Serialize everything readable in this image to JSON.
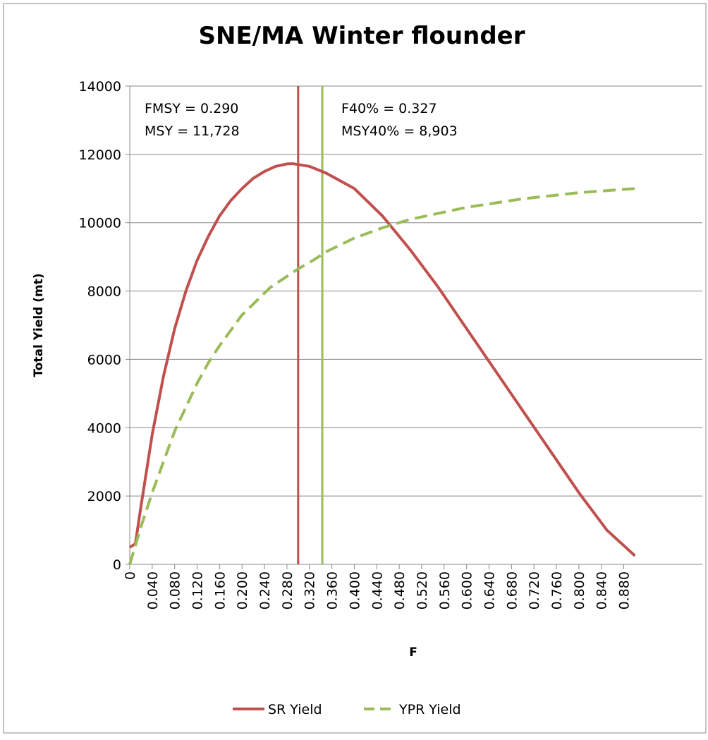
{
  "chart_data": {
    "type": "line",
    "title": "SNE/MA Winter flounder",
    "x_label": "F",
    "y_label": "Total Yield (mt)",
    "xlim": [
      0,
      1.02
    ],
    "ylim": [
      0,
      14000
    ],
    "xticks": [
      0,
      {
        "value": 0.04,
        "label": "0.040"
      },
      {
        "value": 0.08,
        "label": "0.080"
      },
      {
        "value": 0.12,
        "label": "0.120"
      },
      {
        "value": 0.16,
        "label": "0.160"
      },
      {
        "value": 0.2,
        "label": "0.200"
      },
      {
        "value": 0.24,
        "label": "0.240"
      },
      {
        "value": 0.28,
        "label": "0.280"
      },
      {
        "value": 0.32,
        "label": "0.320"
      },
      {
        "value": 0.36,
        "label": "0.360"
      },
      {
        "value": 0.4,
        "label": "0.400"
      },
      {
        "value": 0.44,
        "label": "0.440"
      },
      {
        "value": 0.48,
        "label": "0.480"
      },
      {
        "value": 0.52,
        "label": "0.520"
      },
      {
        "value": 0.56,
        "label": "0.560"
      },
      {
        "value": 0.6,
        "label": "0.600"
      },
      {
        "value": 0.64,
        "label": "0.640"
      },
      {
        "value": 0.68,
        "label": "0.680"
      },
      {
        "value": 0.72,
        "label": "0.720"
      },
      {
        "value": 0.76,
        "label": "0.760"
      },
      {
        "value": 0.8,
        "label": "0.800"
      },
      {
        "value": 0.84,
        "label": "0.840"
      },
      {
        "value": 0.88,
        "label": "0.880"
      }
    ],
    "yticks": [
      0,
      2000,
      4000,
      6000,
      8000,
      10000,
      12000,
      14000
    ],
    "grid": true,
    "series": [
      {
        "name": "SR Yield",
        "color": "#c0504d",
        "dash": false,
        "x": [
          0,
          0.01,
          0.02,
          0.04,
          0.06,
          0.08,
          0.1,
          0.12,
          0.14,
          0.16,
          0.18,
          0.2,
          0.22,
          0.24,
          0.26,
          0.28,
          0.29,
          0.32,
          0.35,
          0.4,
          0.45,
          0.5,
          0.55,
          0.6,
          0.65,
          0.7,
          0.75,
          0.8,
          0.85,
          0.9
        ],
        "values": [
          500,
          600,
          1700,
          3800,
          5500,
          6900,
          8000,
          8900,
          9600,
          10200,
          10650,
          11000,
          11300,
          11500,
          11650,
          11720,
          11728,
          11650,
          11450,
          11000,
          10200,
          9200,
          8100,
          6900,
          5700,
          4500,
          3300,
          2100,
          1000,
          250
        ]
      },
      {
        "name": "YPR Yield",
        "color": "#9bbb59",
        "dash": true,
        "x": [
          0,
          0.02,
          0.04,
          0.06,
          0.08,
          0.1,
          0.12,
          0.14,
          0.16,
          0.2,
          0.25,
          0.3,
          0.327,
          0.35,
          0.4,
          0.45,
          0.5,
          0.6,
          0.7,
          0.8,
          0.9
        ],
        "values": [
          0,
          1100,
          2100,
          3000,
          3900,
          4600,
          5300,
          5900,
          6400,
          7300,
          8100,
          8650,
          8903,
          9150,
          9550,
          9850,
          10100,
          10450,
          10700,
          10880,
          11000
        ]
      }
    ],
    "vlines": [
      {
        "x": 0.3,
        "color": "#c0504d"
      },
      {
        "x": 0.343,
        "color": "#9bbb59"
      }
    ],
    "annotations": [
      "FMSY = 0.290",
      "MSY = 11,728",
      "F40% = 0.327",
      "MSY40% = 8,903"
    ]
  }
}
